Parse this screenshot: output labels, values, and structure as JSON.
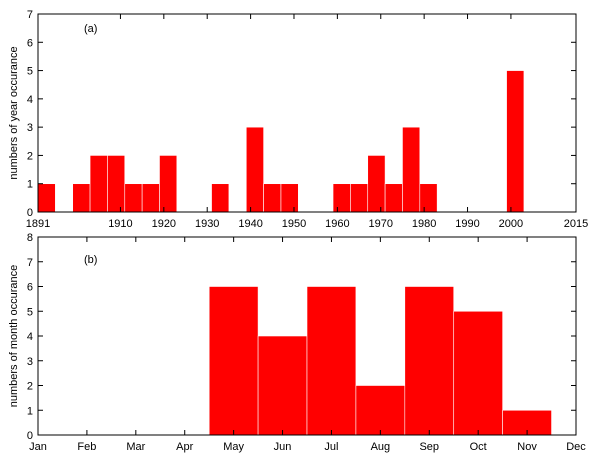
{
  "chart_data": [
    {
      "panel_label": "(a)",
      "type": "bar",
      "ylabel": "numbers of year occurance",
      "xlim": [
        1891,
        2015
      ],
      "ylim": [
        0,
        7
      ],
      "xticks": [
        "1891",
        "1910",
        "1920",
        "1930",
        "1940",
        "1950",
        "1960",
        "1970",
        "1980",
        "1990",
        "2000",
        "2015"
      ],
      "yticks": [
        "0",
        "1",
        "2",
        "3",
        "4",
        "5",
        "6",
        "7"
      ],
      "bar_width": 4,
      "bars": [
        {
          "x0": 1891,
          "value": 1
        },
        {
          "x0": 1899,
          "value": 1
        },
        {
          "x0": 1903,
          "value": 2
        },
        {
          "x0": 1907,
          "value": 2
        },
        {
          "x0": 1911,
          "value": 1
        },
        {
          "x0": 1915,
          "value": 1
        },
        {
          "x0": 1919,
          "value": 2
        },
        {
          "x0": 1931,
          "value": 1
        },
        {
          "x0": 1939,
          "value": 3
        },
        {
          "x0": 1943,
          "value": 1
        },
        {
          "x0": 1947,
          "value": 1
        },
        {
          "x0": 1959,
          "value": 1
        },
        {
          "x0": 1963,
          "value": 1
        },
        {
          "x0": 1967,
          "value": 2
        },
        {
          "x0": 1971,
          "value": 1
        },
        {
          "x0": 1975,
          "value": 3
        },
        {
          "x0": 1979,
          "value": 1
        },
        {
          "x0": 1999,
          "value": 5
        }
      ],
      "bar_color": "#ff0000",
      "grid": false
    },
    {
      "panel_label": "(b)",
      "type": "bar",
      "ylabel": "numbers of month occurance",
      "ylim": [
        0,
        8
      ],
      "categories": [
        "Jan",
        "Feb",
        "Mar",
        "Apr",
        "May",
        "Jun",
        "Jul",
        "Aug",
        "Sep",
        "Oct",
        "Nov",
        "Dec"
      ],
      "values": [
        0,
        0,
        0,
        0,
        6,
        4,
        6,
        2,
        6,
        5,
        1,
        0
      ],
      "yticks": [
        "0",
        "1",
        "2",
        "3",
        "4",
        "5",
        "6",
        "7",
        "8"
      ],
      "bar_color": "#ff0000",
      "grid": false
    }
  ]
}
